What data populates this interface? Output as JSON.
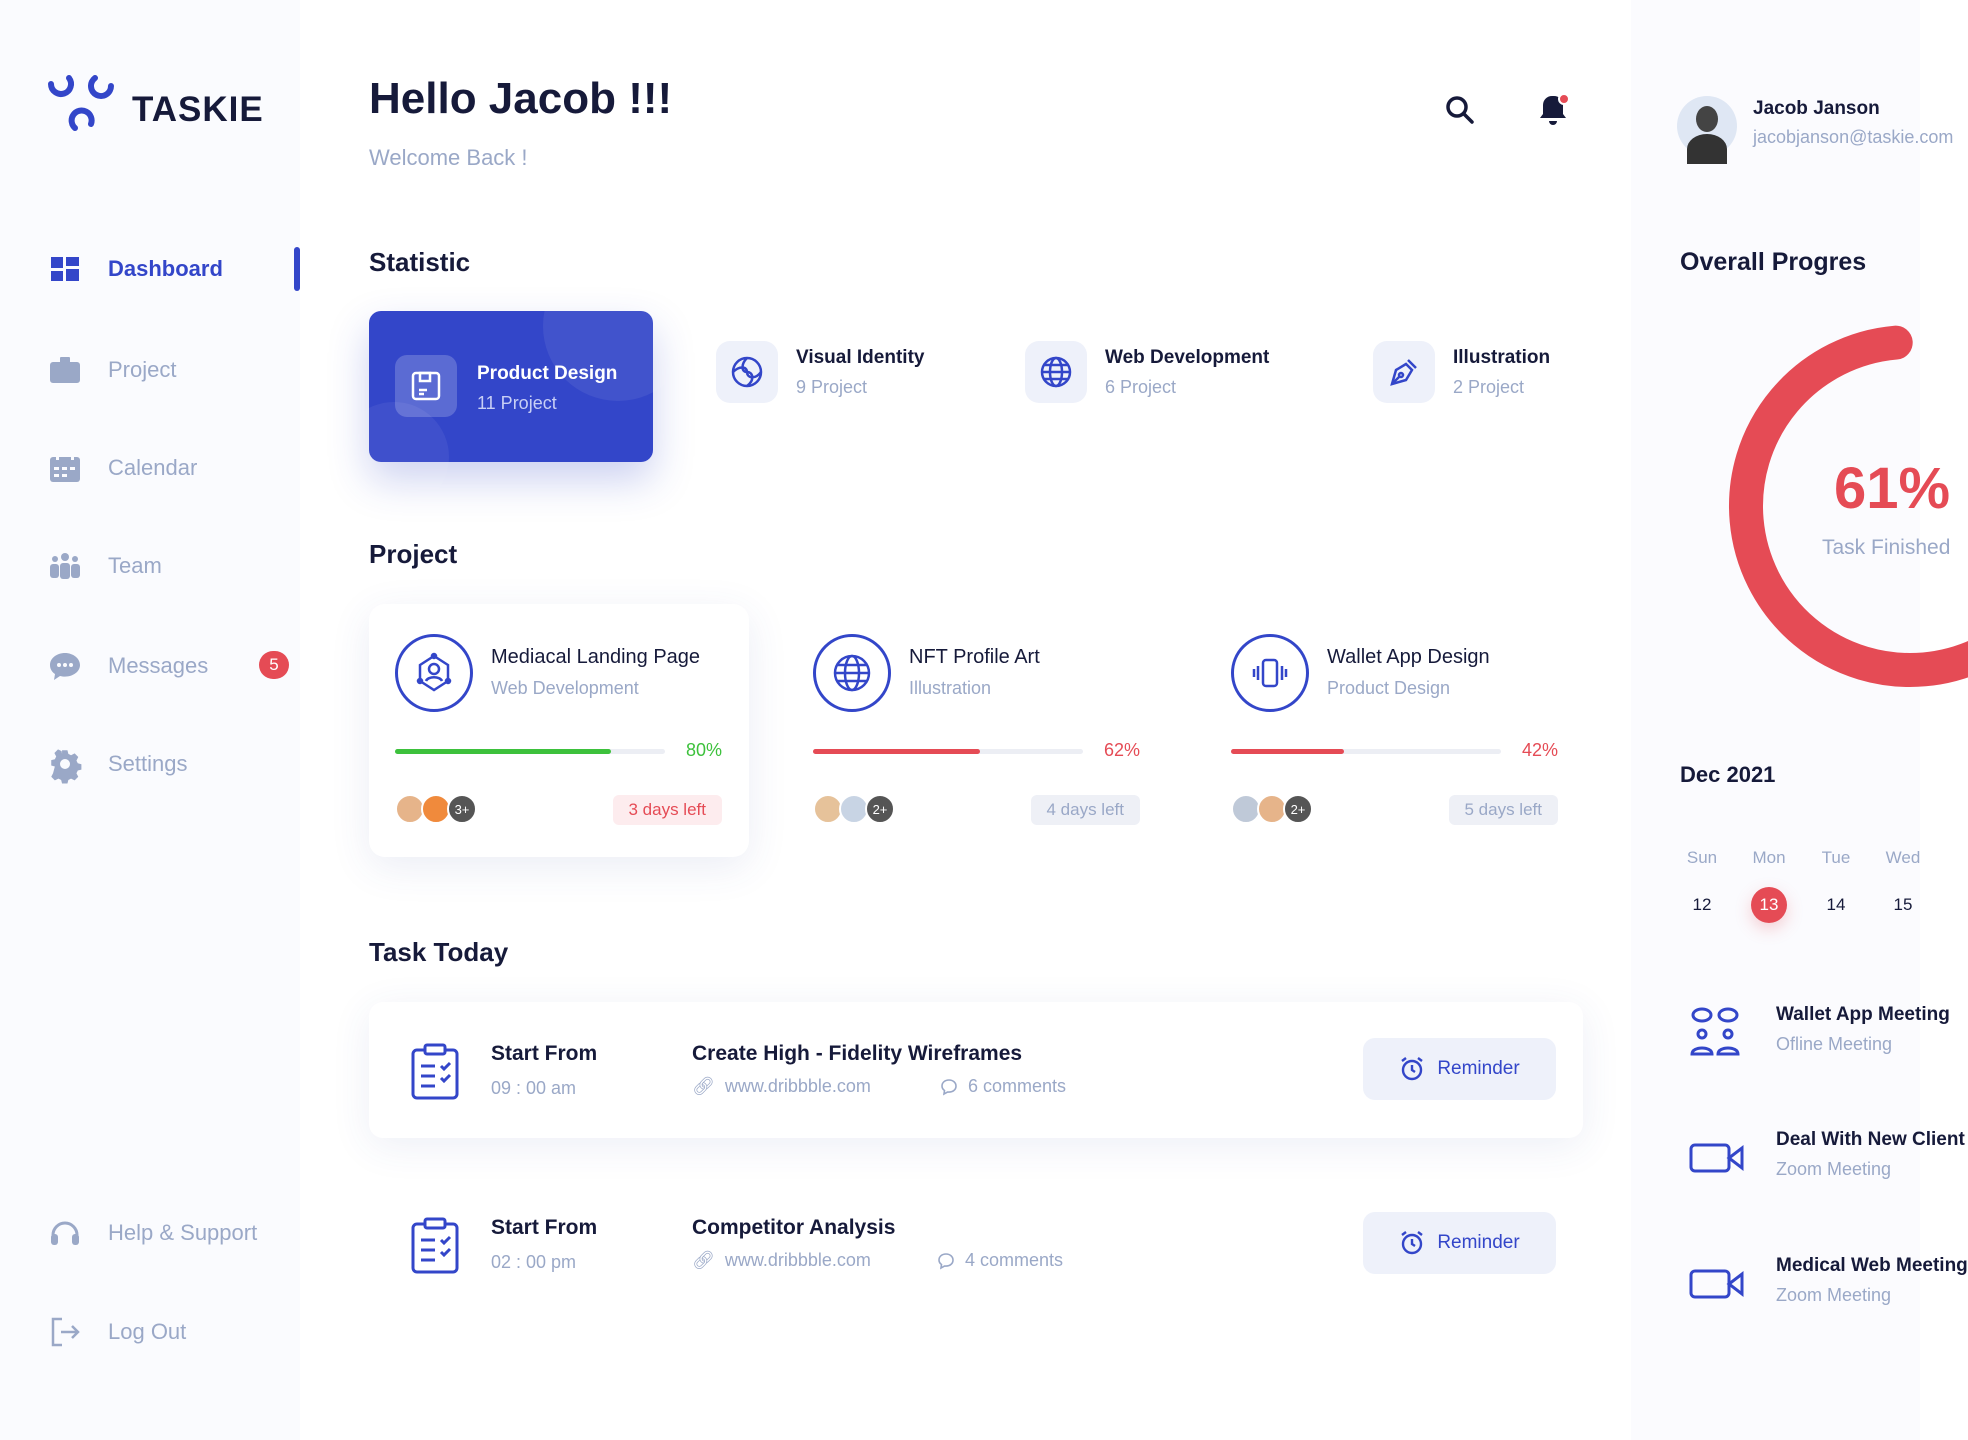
{
  "brand": {
    "name": "TASKIE"
  },
  "colors": {
    "accent": "#3346c9",
    "danger": "#e54b55",
    "success": "#3dc13c",
    "text": "#161a3a",
    "muted": "#9aa8c7"
  },
  "sidebar": {
    "items": [
      {
        "label": "Dashboard",
        "icon": "grid-icon",
        "active": true
      },
      {
        "label": "Project",
        "icon": "briefcase-icon"
      },
      {
        "label": "Calendar",
        "icon": "calendar-icon"
      },
      {
        "label": "Team",
        "icon": "team-icon"
      },
      {
        "label": "Messages",
        "icon": "chat-icon",
        "badge": "5"
      },
      {
        "label": "Settings",
        "icon": "gear-icon"
      }
    ],
    "bottom": [
      {
        "label": "Help & Support",
        "icon": "headset-icon"
      },
      {
        "label": "Log Out",
        "icon": "logout-icon"
      }
    ]
  },
  "header": {
    "title": "Hello Jacob !!!",
    "subtitle": "Welcome Back !"
  },
  "user": {
    "name": "Jacob Janson",
    "email": "jacobjanson@taskie.com"
  },
  "statistic": {
    "title": "Statistic",
    "items": [
      {
        "title": "Product Design",
        "sub": "11 Project",
        "icon": "save-icon",
        "active": true
      },
      {
        "title": "Visual Identity",
        "sub": "9 Project",
        "icon": "spiral-icon"
      },
      {
        "title": "Web Development",
        "sub": "6 Project",
        "icon": "globe-icon"
      },
      {
        "title": "Illustration",
        "sub": "2 Project",
        "icon": "pen-icon"
      }
    ]
  },
  "projects": {
    "title": "Project",
    "items": [
      {
        "title": "Mediacal Landing Page",
        "sub": "Web Development",
        "progress": 80,
        "pct": "80%",
        "more": "3+",
        "days": "3 days left",
        "color": "#3dc13c"
      },
      {
        "title": "NFT Profile Art",
        "sub": "Illustration",
        "progress": 62,
        "pct": "62%",
        "more": "2+",
        "days": "4 days left",
        "color": "#e54b55"
      },
      {
        "title": "Wallet App Design",
        "sub": "Product Design",
        "progress": 42,
        "pct": "42%",
        "more": "2+",
        "days": "5 days left",
        "color": "#e54b55"
      }
    ]
  },
  "tasks": {
    "title": "Task Today",
    "items": [
      {
        "label": "Start From",
        "time": "09 : 00 am",
        "title": "Create High - Fidelity Wireframes",
        "link": "www.dribbble.com",
        "comments": "6 comments",
        "button": "Reminder"
      },
      {
        "label": "Start From",
        "time": "02 : 00 pm",
        "title": "Competitor Analysis",
        "link": "www.dribbble.com",
        "comments": "4 comments",
        "button": "Reminder"
      }
    ]
  },
  "progress": {
    "title": "Overall Progres",
    "value": 61,
    "label": "61%",
    "caption": "Task Finished"
  },
  "calendar": {
    "month": "Dec 2021",
    "days": [
      {
        "d": "Sun",
        "n": "12"
      },
      {
        "d": "Mon",
        "n": "13",
        "selected": true
      },
      {
        "d": "Tue",
        "n": "14"
      },
      {
        "d": "Wed",
        "n": "15"
      }
    ]
  },
  "meetings": [
    {
      "title": "Wallet App Meeting",
      "sub": "Ofline Meeting",
      "icon": "people-chat-icon"
    },
    {
      "title": "Deal With New Client",
      "sub": "Zoom Meeting",
      "icon": "video-icon"
    },
    {
      "title": "Medical Web Meeting",
      "sub": "Zoom Meeting",
      "icon": "video-icon"
    }
  ]
}
